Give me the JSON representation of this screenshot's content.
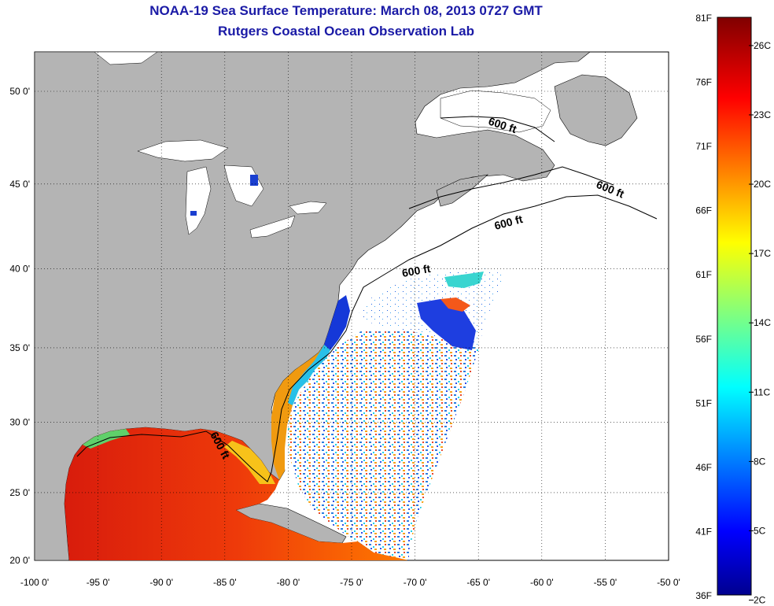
{
  "title": "NOAA-19 Sea Surface Temperature:  March 08, 2013 0727 GMT",
  "subtitle": "Rutgers Coastal Ocean Observation Lab",
  "map": {
    "lon_range": [
      -100,
      -50
    ],
    "lat_range": [
      20,
      52.5
    ],
    "lon_ticks": [
      "-100 0'",
      "-95 0'",
      "-90 0'",
      "-85 0'",
      "-80 0'",
      "-75 0'",
      "-70 0'",
      "-65 0'",
      "-60 0'",
      "-55 0'",
      "-50 0'"
    ],
    "lat_ticks": [
      "20 0'",
      "25 0'",
      "30 0'",
      "35 0'",
      "40 0'",
      "45 0'",
      "50 0'"
    ],
    "grid": true,
    "land_color": "#b4b4b4",
    "no_data_color": "#ffffff",
    "contour_labels": [
      "600 ft",
      "600 ft",
      "600 ft",
      "600 ft",
      "600 ft"
    ]
  },
  "colorbar": {
    "fahrenheit_labels": [
      "81F",
      "76F",
      "71F",
      "66F",
      "61F",
      "56F",
      "51F",
      "46F",
      "41F",
      "36F"
    ],
    "celsius_labels": [
      "26C",
      "23C",
      "20C",
      "17C",
      "14C",
      "11C",
      "8C",
      "5C",
      "2C"
    ],
    "range_c": [
      2,
      27
    ],
    "colormap": "jet"
  }
}
